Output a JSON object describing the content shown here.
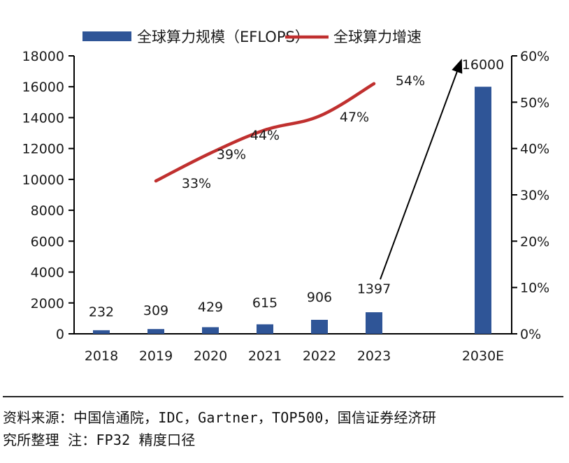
{
  "chart_data": {
    "type": "bar",
    "title": "",
    "categories": [
      "2018",
      "2019",
      "2020",
      "2021",
      "2022",
      "2023",
      "",
      "2030E"
    ],
    "series": [
      {
        "name": "全球算力规模（EFLOPS）",
        "kind": "bar",
        "axis": "left",
        "color": "#2F5597",
        "values": [
          232,
          309,
          429,
          615,
          906,
          1397,
          null,
          16000
        ],
        "labels": [
          "232",
          "309",
          "429",
          "615",
          "906",
          "1397",
          null,
          "16000"
        ]
      },
      {
        "name": "全球算力增速",
        "kind": "line",
        "axis": "right",
        "color": "#C0302F",
        "values": [
          null,
          33,
          39,
          44,
          47,
          54,
          null,
          null
        ],
        "labels": [
          null,
          "33%",
          "39%",
          "44%",
          "47%",
          "54%",
          null,
          null
        ]
      }
    ],
    "left_axis": {
      "ylim": [
        0,
        18000
      ],
      "ticks": [
        "0",
        "2000",
        "4000",
        "6000",
        "8000",
        "10000",
        "12000",
        "14000",
        "16000",
        "18000"
      ]
    },
    "right_axis": {
      "ylim": [
        0,
        60
      ],
      "ticks": [
        "0%",
        "10%",
        "20%",
        "30%",
        "40%",
        "50%",
        "60%"
      ]
    },
    "annotation": {
      "type": "arrow",
      "from": "2023",
      "to": "2030E"
    },
    "legend": {
      "position": "top",
      "items": [
        "全球算力规模（EFLOPS）",
        "全球算力增速"
      ]
    },
    "grid": false,
    "xlabel": "",
    "ylabel": ""
  },
  "footer": {
    "source_line1": "资料来源：中国信通院，IDC，Gartner，TOP500，国信证券经济研",
    "source_line2": "究所整理 注：FP32 精度口径"
  }
}
